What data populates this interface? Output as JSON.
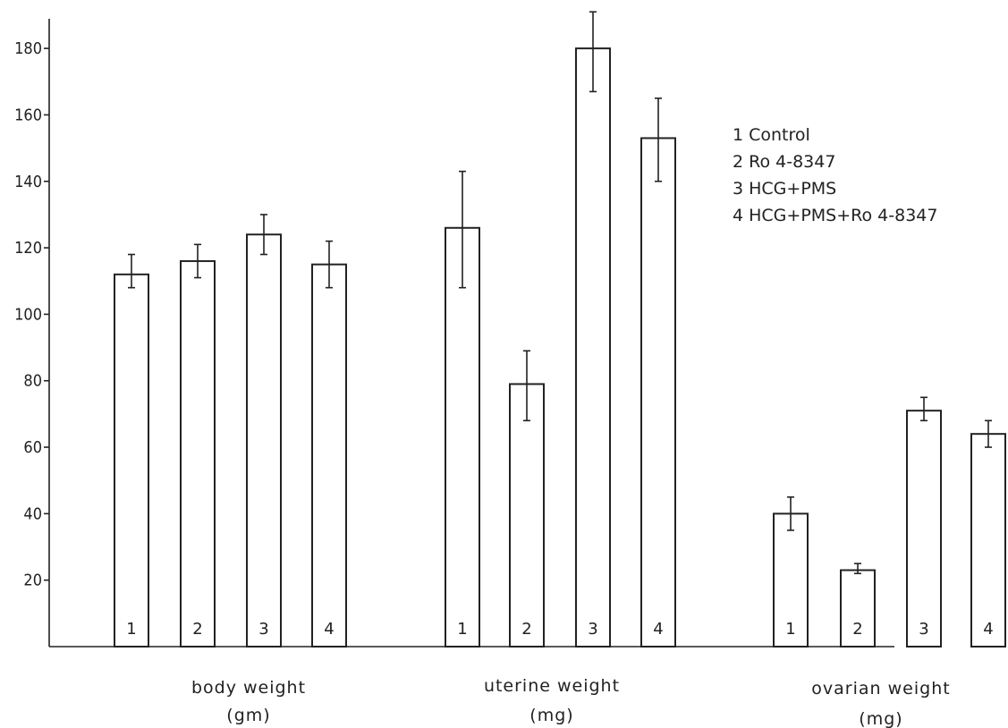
{
  "chart_data": {
    "type": "bar",
    "ylim": [
      0,
      190
    ],
    "yticks": [
      "20",
      "40",
      "60",
      "80",
      "100",
      "120",
      "140",
      "160",
      "180"
    ],
    "grid": false,
    "legend_position": "top-right",
    "legend": [
      "1 Control",
      "2 Ro 4-8347",
      "3 HCG+PMS",
      "4 HCG+PMS+Ro 4-8347"
    ],
    "groups": [
      {
        "label": "body weight",
        "unit": "(gm)",
        "bars": [
          {
            "id": "1",
            "value": 112,
            "err_low": 108,
            "err_high": 118
          },
          {
            "id": "2",
            "value": 116,
            "err_low": 111,
            "err_high": 121
          },
          {
            "id": "3",
            "value": 124,
            "err_low": 118,
            "err_high": 130
          },
          {
            "id": "4",
            "value": 115,
            "err_low": 108,
            "err_high": 122
          }
        ]
      },
      {
        "label": "uterine weight",
        "unit": "(mg)",
        "bars": [
          {
            "id": "1",
            "value": 126,
            "err_low": 108,
            "err_high": 143
          },
          {
            "id": "2",
            "value": 79,
            "err_low": 68,
            "err_high": 89
          },
          {
            "id": "3",
            "value": 180,
            "err_low": 167,
            "err_high": 191
          },
          {
            "id": "4",
            "value": 153,
            "err_low": 140,
            "err_high": 165
          }
        ]
      },
      {
        "label": "ovarian weight",
        "unit": "(mg)",
        "bars": [
          {
            "id": "1",
            "value": 40,
            "err_low": 35,
            "err_high": 45
          },
          {
            "id": "2",
            "value": 23,
            "err_low": 22,
            "err_high": 25
          },
          {
            "id": "3",
            "value": 71,
            "err_low": 68,
            "err_high": 75
          },
          {
            "id": "4",
            "value": 64,
            "err_low": 60,
            "err_high": 68
          }
        ]
      }
    ]
  }
}
